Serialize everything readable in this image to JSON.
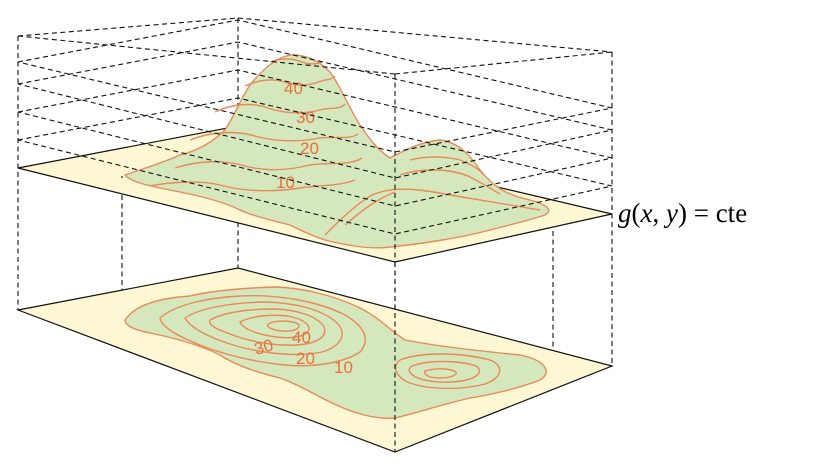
{
  "contour_labels": [
    "40",
    "30",
    "20",
    "10"
  ],
  "map_labels": [
    "40",
    "30",
    "20",
    "10"
  ],
  "equation": {
    "func": "g",
    "open": "(",
    "x": "x",
    "comma": ", ",
    "y": "y",
    "close": ")",
    "eq": " = ",
    "rhs": "cte"
  },
  "colors": {
    "plane_fill": "#fdf8d3",
    "land_fill": "#d5e8bd",
    "contour_stroke": "#e8895a",
    "label_color": "#e8703c"
  }
}
